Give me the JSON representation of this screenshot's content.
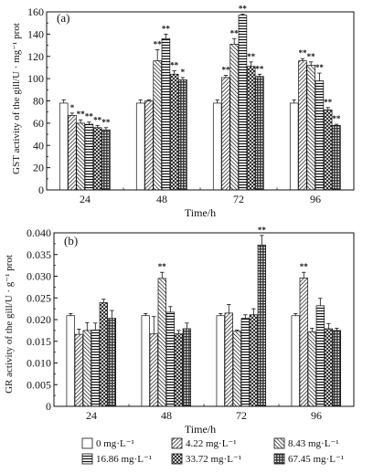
{
  "legend": [
    {
      "label": "0 mg·L⁻¹",
      "pattern": "blank"
    },
    {
      "label": "4.22 mg·L⁻¹",
      "pattern": "diag-right"
    },
    {
      "label": "8.43 mg·L⁻¹",
      "pattern": "diag-left"
    },
    {
      "label": "16.86 mg·L⁻¹",
      "pattern": "horizontal"
    },
    {
      "label": "33.72 mg·L⁻¹",
      "pattern": "cross-diag"
    },
    {
      "label": "67.45 mg·L⁻¹",
      "pattern": "grid"
    }
  ],
  "chart_data": [
    {
      "type": "bar",
      "panel_label": "(a)",
      "categories": [
        "24",
        "48",
        "72",
        "96"
      ],
      "xlabel": "Time/h",
      "ylabel": "GST activity of the gill/U · mg⁻¹ prot",
      "ylim": [
        0,
        160
      ],
      "yticks": [
        0,
        20,
        40,
        60,
        80,
        100,
        120,
        140,
        160
      ],
      "series": [
        {
          "name": "0 mg·L⁻¹",
          "values": [
            78,
            78,
            78,
            78
          ],
          "errors": [
            3,
            3,
            3,
            3
          ],
          "sig": [
            "",
            "",
            "",
            ""
          ]
        },
        {
          "name": "4.22 mg·L⁻¹",
          "values": [
            67,
            80,
            101,
            116
          ],
          "errors": [
            2,
            1,
            2,
            2
          ],
          "sig": [
            "*",
            "",
            "**",
            "**"
          ]
        },
        {
          "name": "8.43 mg·L⁻¹",
          "values": [
            60,
            116,
            131,
            112
          ],
          "errors": [
            3,
            10,
            5,
            3
          ],
          "sig": [
            "**",
            "**",
            "**",
            "**"
          ]
        },
        {
          "name": "16.86 mg·L⁻¹",
          "values": [
            59,
            136,
            157,
            98
          ],
          "errors": [
            2,
            4,
            1,
            7
          ],
          "sig": [
            "**",
            "**",
            "**",
            "**"
          ]
        },
        {
          "name": "33.72 mg·L⁻¹",
          "values": [
            56,
            104,
            111,
            72
          ],
          "errors": [
            2,
            3,
            4,
            2
          ],
          "sig": [
            "**",
            "**",
            "**",
            "**"
          ]
        },
        {
          "name": "67.45 mg·L⁻¹",
          "values": [
            54,
            99,
            102,
            58
          ],
          "errors": [
            2,
            2,
            2,
            1
          ],
          "sig": [
            "**",
            "*",
            "**",
            "**"
          ]
        }
      ]
    },
    {
      "type": "bar",
      "panel_label": "(b)",
      "categories": [
        "24",
        "48",
        "72",
        "96"
      ],
      "xlabel": "Time/h",
      "ylabel": "GR activity of the gill/U · g⁻¹ prot",
      "ylim": [
        0,
        0.04
      ],
      "yticks": [
        0,
        0.005,
        0.01,
        0.015,
        0.02,
        0.025,
        0.03,
        0.035,
        0.04
      ],
      "ytick_labels": [
        "0",
        "0.005",
        "0.010",
        "0.015",
        "0.020",
        "0.025",
        "0.030",
        "0.035",
        "0.040"
      ],
      "series": [
        {
          "name": "0 mg·L⁻¹",
          "values": [
            0.0209,
            0.0209,
            0.0209,
            0.0209
          ],
          "errors": [
            0.0005,
            0.0005,
            0.0005,
            0.0005
          ],
          "sig": [
            "",
            "",
            "",
            ""
          ]
        },
        {
          "name": "4.22 mg·L⁻¹",
          "values": [
            0.0166,
            0.0167,
            0.0215,
            0.0296
          ],
          "errors": [
            0.0012,
            0.004,
            0.002,
            0.0013
          ],
          "sig": [
            "",
            "",
            "",
            "**"
          ]
        },
        {
          "name": "8.43 mg·L⁻¹",
          "values": [
            0.0175,
            0.0295,
            0.0173,
            0.0172
          ],
          "errors": [
            0.0018,
            0.0014,
            0.0003,
            0.0008
          ],
          "sig": [
            "",
            "**",
            "",
            ""
          ]
        },
        {
          "name": "16.86 mg·L⁻¹",
          "values": [
            0.0176,
            0.0217,
            0.0203,
            0.0232
          ],
          "errors": [
            0.0016,
            0.0013,
            0.0008,
            0.0017
          ],
          "sig": [
            "",
            "",
            "",
            ""
          ]
        },
        {
          "name": "33.72 mg·L⁻¹",
          "values": [
            0.0239,
            0.0167,
            0.0211,
            0.0179
          ],
          "errors": [
            0.0008,
            0.0008,
            0.0014,
            0.0012
          ],
          "sig": [
            "",
            "",
            "",
            ""
          ]
        },
        {
          "name": "67.45 mg·L⁻¹",
          "values": [
            0.0203,
            0.0179,
            0.0372,
            0.0175
          ],
          "errors": [
            0.0018,
            0.0013,
            0.0022,
            0.0005
          ],
          "sig": [
            "",
            "",
            "**",
            ""
          ]
        }
      ]
    }
  ]
}
